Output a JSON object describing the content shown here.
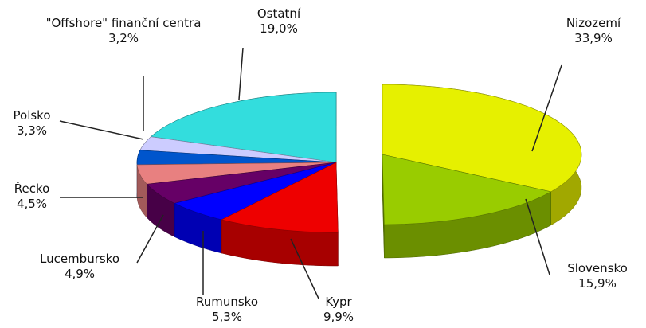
{
  "chart_data": {
    "type": "pie3d",
    "categories": [
      "Nizozemí",
      "Slovensko",
      "Kypr",
      "Rumunsko",
      "Lucembursko",
      "Řecko",
      "Polsko",
      "\"Offshore\" finanční centra",
      "Ostatní"
    ],
    "values": [
      33.9,
      15.9,
      9.9,
      5.3,
      4.9,
      4.5,
      3.3,
      3.2,
      19.0
    ],
    "value_labels": [
      "33,9%",
      "15,9%",
      "9,9%",
      "5,3%",
      "4,9%",
      "4,5%",
      "3,3%",
      "3,2%",
      "19,0%"
    ],
    "colors": [
      "#e6f000",
      "#99cc00",
      "#ee0000",
      "#0000ff",
      "#660066",
      "#e88080",
      "#0055cc",
      "#ccccff",
      "#33dddd"
    ]
  }
}
